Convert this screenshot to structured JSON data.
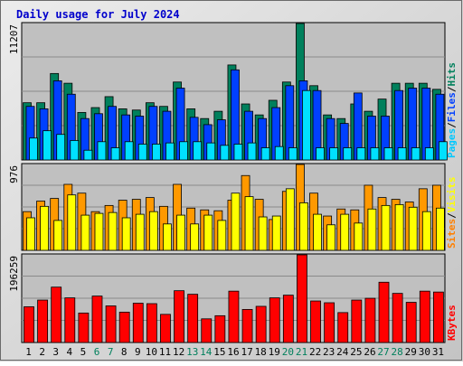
{
  "chart_data": {
    "title": "Daily usage for July 2024",
    "type": "bar",
    "categories": [
      "1",
      "2",
      "3",
      "4",
      "5",
      "6",
      "7",
      "8",
      "9",
      "10",
      "11",
      "12",
      "13",
      "14",
      "15",
      "16",
      "17",
      "18",
      "19",
      "20",
      "21",
      "22",
      "23",
      "24",
      "25",
      "26",
      "27",
      "28",
      "29",
      "30",
      "31"
    ],
    "weekend_days": [
      "6",
      "7",
      "13",
      "14",
      "20",
      "21",
      "27",
      "28"
    ],
    "panels": [
      {
        "name": "pages-files-hits",
        "ylim": [
          0,
          11207
        ],
        "max_label": "11207",
        "right_labels": [
          {
            "text": "Pages",
            "color": "#00c8ff"
          },
          {
            "text": "Files",
            "color": "#0040ff"
          },
          {
            "text": "Hits",
            "color": "#00805c"
          }
        ],
        "series": [
          {
            "name": "Hits",
            "color": "#00805c",
            "values": [
              4700,
              4700,
              7100,
              6300,
              3900,
              4300,
              5200,
              4200,
              4100,
              4700,
              4400,
              6400,
              4200,
              3400,
              4000,
              7800,
              4600,
              3700,
              4900,
              6400,
              11207,
              6100,
              3700,
              3400,
              4600,
              4000,
              5000,
              6300,
              6300,
              6300,
              5800
            ]
          },
          {
            "name": "Files",
            "color": "#0040ff",
            "values": [
              4400,
              4200,
              6500,
              5400,
              3400,
              3800,
              4400,
              3700,
              3600,
              4400,
              4000,
              5900,
              3500,
              2900,
              3300,
              7400,
              4000,
              3400,
              4300,
              6100,
              6500,
              5700,
              3400,
              3000,
              5500,
              3600,
              3600,
              5700,
              5900,
              5900,
              5400
            ]
          },
          {
            "name": "Pages",
            "color": "#00e0ff",
            "values": [
              1800,
              2400,
              2100,
              1600,
              800,
              1500,
              1000,
              1500,
              1300,
              1300,
              1400,
              1500,
              1500,
              1400,
              1200,
              1300,
              1400,
              1000,
              1100,
              1000,
              5700,
              1000,
              1000,
              1000,
              1000,
              1000,
              1000,
              1000,
              1000,
              1000,
              1500
            ]
          }
        ]
      },
      {
        "name": "sites-visits",
        "ylim": [
          0,
          976
        ],
        "max_label": "976",
        "right_labels": [
          {
            "text": "Sites",
            "color": "#ff8000"
          },
          {
            "text": "Visits",
            "color": "#ffff00"
          }
        ],
        "series": [
          {
            "name": "Visits",
            "color": "#ff9900",
            "values": [
              440,
              560,
              590,
              750,
              650,
              440,
              510,
              570,
              580,
              600,
              500,
              750,
              480,
              460,
              450,
              570,
              850,
              580,
              350,
              670,
              976,
              650,
              390,
              470,
              460,
              740,
              600,
              580,
              550,
              700,
              740
            ]
          },
          {
            "name": "Sites",
            "color": "#ffff00",
            "values": [
              370,
              500,
              340,
              630,
              400,
              420,
              430,
              370,
              410,
              440,
              300,
              400,
              300,
              400,
              340,
              650,
              610,
              380,
              390,
              700,
              540,
              410,
              290,
              410,
              310,
              470,
              510,
              520,
              490,
              440,
              480
            ]
          }
        ]
      },
      {
        "name": "kbytes",
        "ylim": [
          0,
          196259
        ],
        "max_label": "196259",
        "right_labels": [
          {
            "text": "KBytes",
            "color": "#ff0000"
          }
        ],
        "series": [
          {
            "name": "KBytes",
            "color": "#ff0000",
            "values": [
              80000,
              95000,
              124000,
              100000,
              66000,
              104000,
              82000,
              68000,
              88000,
              87000,
              63000,
              116000,
              108000,
              53000,
              60000,
              115000,
              74000,
              81000,
              100000,
              106000,
              196259,
              93000,
              89000,
              67000,
              95000,
              99000,
              135000,
              110000,
              90000,
              115000,
              113000
            ]
          }
        ]
      }
    ]
  }
}
